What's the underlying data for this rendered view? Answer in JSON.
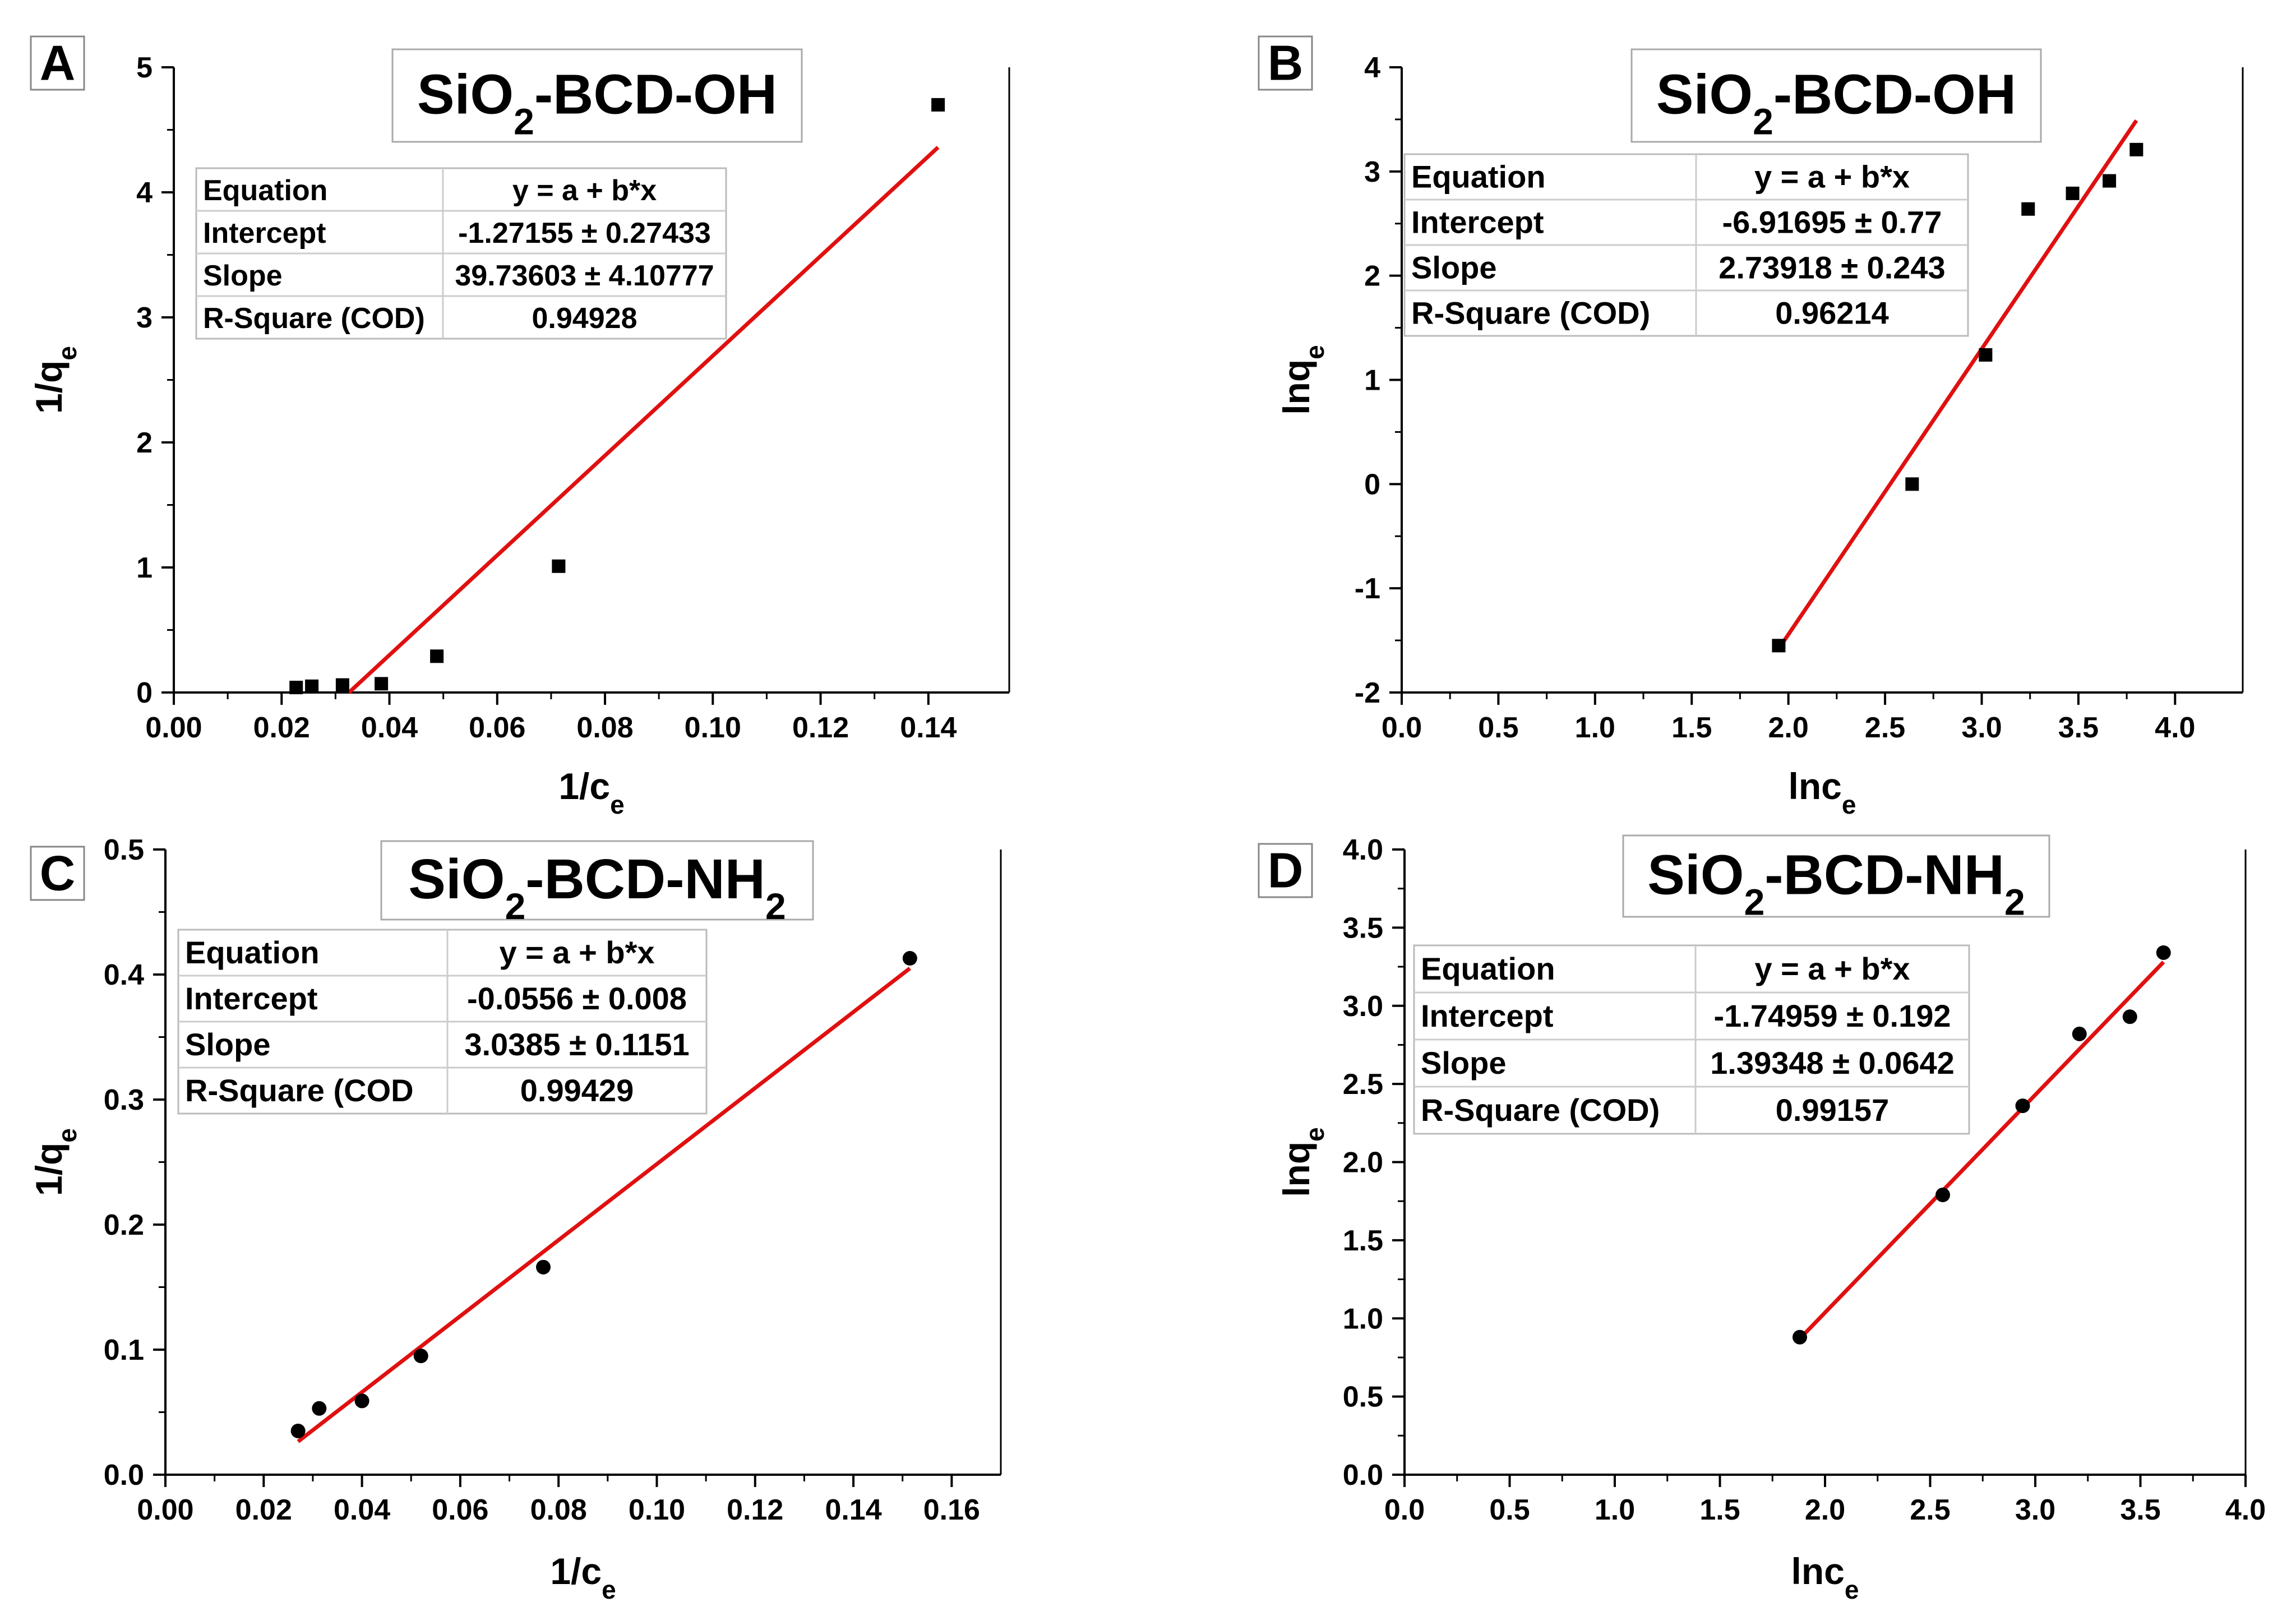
{
  "figure": {
    "panels": [
      "A",
      "B",
      "C",
      "D"
    ]
  },
  "chart_data": [
    {
      "panel_label": "A",
      "type": "scatter",
      "title_main": "SiO",
      "title_sub": "2",
      "title_rest": "-BCD-OH",
      "title_tail": "",
      "title_tail_sub": "",
      "xlabel": "1/c",
      "xlabel_sub": "e",
      "ylabel": "1/q",
      "ylabel_sub": "e",
      "xlim": [
        0.0,
        0.155
      ],
      "ylim": [
        0.0,
        5.0
      ],
      "xticks": [
        "0.00",
        "0.02",
        "0.04",
        "0.06",
        "0.08",
        "0.10",
        "0.12",
        "0.14"
      ],
      "xtick_values": [
        0.0,
        0.02,
        0.04,
        0.06,
        0.08,
        0.1,
        0.12,
        0.14
      ],
      "yticks": [
        "0",
        "1",
        "2",
        "3",
        "4",
        "5"
      ],
      "ytick_values": [
        0,
        1,
        2,
        3,
        4,
        5
      ],
      "marker": "square",
      "points": {
        "x": [
          0.0227,
          0.0256,
          0.0313,
          0.0385,
          0.0488,
          0.0714,
          0.1418
        ],
        "y": [
          0.04,
          0.05,
          0.06,
          0.07,
          0.29,
          1.01,
          4.7
        ]
      },
      "fit": {
        "x": [
          0.0325,
          0.1418
        ],
        "y": [
          0.0,
          4.36
        ],
        "color": "#e01010"
      },
      "table": {
        "rows": [
          [
            "Equation",
            "y = a + b*x"
          ],
          [
            "Intercept",
            "-1.27155 ± 0.27433"
          ],
          [
            "Slope",
            "39.73603 ± 4.10777"
          ],
          [
            "R-Square (COD)",
            "0.94928"
          ]
        ]
      }
    },
    {
      "panel_label": "B",
      "type": "scatter",
      "title_main": "SiO",
      "title_sub": "2",
      "title_rest": "-BCD-OH",
      "title_tail": "",
      "title_tail_sub": "",
      "xlabel": "lnc",
      "xlabel_sub": "e",
      "ylabel": "lnq",
      "ylabel_sub": "e",
      "xlim": [
        0.0,
        4.35
      ],
      "ylim": [
        -2,
        4
      ],
      "xticks": [
        "0.0",
        "0.5",
        "1.0",
        "1.5",
        "2.0",
        "2.5",
        "3.0",
        "3.5",
        "4.0"
      ],
      "xtick_values": [
        0.0,
        0.5,
        1.0,
        1.5,
        2.0,
        2.5,
        3.0,
        3.5,
        4.0
      ],
      "yticks": [
        "-2",
        "-1",
        "0",
        "1",
        "2",
        "3",
        "4"
      ],
      "ytick_values": [
        -2,
        -1,
        0,
        1,
        2,
        3,
        4
      ],
      "marker": "square",
      "points": {
        "x": [
          1.95,
          2.64,
          3.02,
          3.24,
          3.47,
          3.66,
          3.8
        ],
        "y": [
          -1.55,
          0.0,
          1.24,
          2.64,
          2.79,
          2.91,
          3.21
        ]
      },
      "fit": {
        "x": [
          1.95,
          3.8
        ],
        "y": [
          -1.58,
          3.49
        ],
        "color": "#e01010"
      },
      "table": {
        "rows": [
          [
            "Equation",
            "y = a + b*x"
          ],
          [
            "Intercept",
            "-6.91695 ± 0.77"
          ],
          [
            "Slope",
            "2.73918 ± 0.243"
          ],
          [
            "R-Square (COD)",
            "0.96214"
          ]
        ]
      }
    },
    {
      "panel_label": "C",
      "type": "scatter",
      "title_main": "SiO",
      "title_sub": "2",
      "title_rest": "-BCD-NH",
      "title_tail": "",
      "title_tail_sub": "2",
      "xlabel": "1/c",
      "xlabel_sub": "e",
      "ylabel": "1/q",
      "ylabel_sub": "e",
      "xlim": [
        0.0,
        0.17
      ],
      "ylim": [
        0.0,
        0.5
      ],
      "xticks": [
        "0.00",
        "0.02",
        "0.04",
        "0.06",
        "0.08",
        "0.10",
        "0.12",
        "0.14",
        "0.16"
      ],
      "xtick_values": [
        0.0,
        0.02,
        0.04,
        0.06,
        0.08,
        0.1,
        0.12,
        0.14,
        0.16
      ],
      "yticks": [
        "0.0",
        "0.1",
        "0.2",
        "0.3",
        "0.4",
        "0.5"
      ],
      "ytick_values": [
        0.0,
        0.1,
        0.2,
        0.3,
        0.4,
        0.5
      ],
      "marker": "circle",
      "points": {
        "x": [
          0.027,
          0.0313,
          0.04,
          0.052,
          0.0769,
          0.1515
        ],
        "y": [
          0.035,
          0.053,
          0.059,
          0.095,
          0.166,
          0.413
        ]
      },
      "fit": {
        "x": [
          0.027,
          0.1515
        ],
        "y": [
          0.0265,
          0.405
        ],
        "color": "#e01010"
      },
      "table": {
        "rows": [
          [
            "Equation",
            "y = a + b*x"
          ],
          [
            "Intercept",
            "-0.0556 ± 0.008"
          ],
          [
            "Slope",
            "3.0385 ± 0.1151"
          ],
          [
            "R-Square (COD",
            "0.99429"
          ]
        ]
      }
    },
    {
      "panel_label": "D",
      "type": "scatter",
      "title_main": "SiO",
      "title_sub": "2",
      "title_rest": "-BCD-NH",
      "title_tail": "",
      "title_tail_sub": "2",
      "xlabel": "lnc",
      "xlabel_sub": "e",
      "ylabel": "lnq",
      "ylabel_sub": "e",
      "xlim": [
        0.0,
        4.0
      ],
      "ylim": [
        0.0,
        4.0
      ],
      "xticks": [
        "0.0",
        "0.5",
        "1.0",
        "1.5",
        "2.0",
        "2.5",
        "3.0",
        "3.5",
        "4.0"
      ],
      "xtick_values": [
        0.0,
        0.5,
        1.0,
        1.5,
        2.0,
        2.5,
        3.0,
        3.5,
        4.0
      ],
      "yticks": [
        "0.0",
        "0.5",
        "1.0",
        "1.5",
        "2.0",
        "2.5",
        "3.0",
        "3.5",
        "4.0"
      ],
      "ytick_values": [
        0.0,
        0.5,
        1.0,
        1.5,
        2.0,
        2.5,
        3.0,
        3.5,
        4.0
      ],
      "marker": "circle",
      "points": {
        "x": [
          1.88,
          2.56,
          2.94,
          3.21,
          3.45,
          3.61
        ],
        "y": [
          0.88,
          1.79,
          2.36,
          2.82,
          2.93,
          3.34
        ]
      },
      "fit": {
        "x": [
          1.88,
          3.61
        ],
        "y": [
          0.87,
          3.28
        ],
        "color": "#e01010"
      },
      "table": {
        "rows": [
          [
            "Equation",
            "y = a + b*x"
          ],
          [
            "Intercept",
            "-1.74959 ± 0.192"
          ],
          [
            "Slope",
            "1.39348 ± 0.0642"
          ],
          [
            "R-Square (COD)",
            "0.99157"
          ]
        ]
      }
    }
  ]
}
